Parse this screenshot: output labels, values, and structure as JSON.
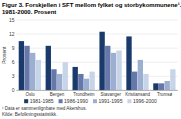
{
  "chart_data": {
    "type": "bar",
    "title": "Figur 3. Forskjellen i SFT mellom fylket og storbykommunene¹.  1981-2000. Prosent",
    "ylabel": "Prosent",
    "footnote": "¹ Data er sammenlignbare med Akershus.\nKilde: Befolkningsstatistikk.",
    "categories": [
      "Oslo",
      "Bergen",
      "Trondheim",
      "Stavanger",
      "Kristiansand",
      "Tromsø"
    ],
    "series": [
      {
        "name": "1981-1985",
        "color": "#1a3a6b",
        "values": [
          10.5,
          9.5,
          5.0,
          12.5,
          11.5,
          1.5
        ]
      },
      {
        "name": "1986-1990",
        "color": "#6677aa",
        "values": [
          9.5,
          4.5,
          3.5,
          9.5,
          4.0,
          1.5
        ]
      },
      {
        "name": "1991-1995",
        "color": "#9dafd0",
        "values": [
          8.0,
          3.5,
          2.5,
          8.0,
          6.5,
          2.0
        ]
      },
      {
        "name": "1996-2000",
        "color": "#c8d5e8",
        "values": [
          6.5,
          6.0,
          4.0,
          8.5,
          3.5,
          4.5
        ]
      }
    ],
    "ylim": [
      0,
      15
    ],
    "yticks": [
      0,
      3,
      6,
      9,
      12,
      15
    ],
    "grid": true,
    "legend": "bottom"
  }
}
